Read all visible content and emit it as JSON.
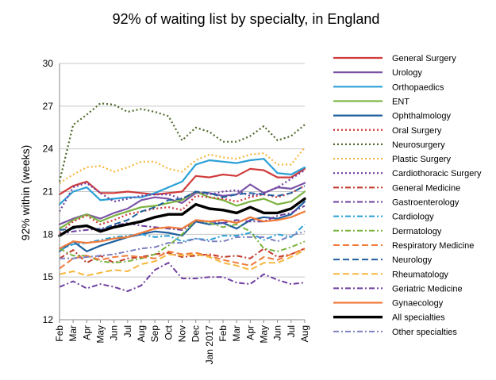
{
  "chart_data": {
    "type": "line",
    "title": "92% of waiting list by specialty, in England",
    "ylabel": "92% within (weeks)",
    "xlabel": "",
    "ylim": [
      12,
      30
    ],
    "yticks": [
      12,
      15,
      18,
      21,
      24,
      27,
      30
    ],
    "grid": "horizontal",
    "legend_position": "right",
    "x": [
      "Feb",
      "Mar",
      "Apr",
      "May",
      "Jun",
      "Jul",
      "Aug",
      "Sep",
      "Oct",
      "Nov",
      "Dec",
      "Jan 2017",
      "Feb",
      "Mar",
      "Apr",
      "May",
      "Jun",
      "Jul",
      "Aug"
    ],
    "series": [
      {
        "name": "General Surgery",
        "color": "#d03b3b",
        "dash": "solid",
        "width": 2.2,
        "values": [
          20.8,
          21.4,
          21.7,
          20.9,
          20.9,
          21.0,
          20.9,
          20.8,
          20.9,
          21.0,
          22.1,
          22.0,
          22.2,
          22.1,
          22.6,
          22.5,
          22.0,
          22.0,
          22.6
        ]
      },
      {
        "name": "Urology",
        "color": "#7b54a6",
        "dash": "solid",
        "width": 2.2,
        "values": [
          18.7,
          19.1,
          19.4,
          19.1,
          19.5,
          19.8,
          20.4,
          20.6,
          20.5,
          20.2,
          20.9,
          20.9,
          20.7,
          20.8,
          21.5,
          20.9,
          21.3,
          21.2,
          21.6
        ]
      },
      {
        "name": "Orthopaedics",
        "color": "#2a9fd6",
        "dash": "solid",
        "width": 2.2,
        "values": [
          20.1,
          21.0,
          21.3,
          20.4,
          20.5,
          20.6,
          20.6,
          20.9,
          21.3,
          21.7,
          22.9,
          23.2,
          23.1,
          23.0,
          23.2,
          23.3,
          22.3,
          22.2,
          22.7
        ]
      },
      {
        "name": "ENT",
        "color": "#7bb33f",
        "dash": "solid",
        "width": 2.2,
        "values": [
          18.4,
          19.0,
          19.4,
          18.9,
          19.3,
          19.6,
          19.9,
          20.0,
          20.2,
          20.4,
          21.0,
          20.6,
          20.4,
          20.0,
          20.3,
          20.5,
          20.1,
          20.3,
          21.0
        ]
      },
      {
        "name": "Ophthalmology",
        "color": "#1f5f9e",
        "dash": "solid",
        "width": 2.2,
        "values": [
          16.8,
          17.5,
          16.8,
          17.2,
          17.5,
          17.8,
          18.0,
          18.2,
          18.1,
          17.9,
          18.9,
          18.7,
          18.8,
          18.4,
          19.0,
          19.2,
          19.1,
          19.4,
          20.3
        ]
      },
      {
        "name": "Oral Surgery",
        "color": "#d03b3b",
        "dash": "dot",
        "width": 2.2,
        "values": [
          18.1,
          18.9,
          19.3,
          18.7,
          19.0,
          19.4,
          19.6,
          19.8,
          19.9,
          19.7,
          20.7,
          20.6,
          20.5,
          20.3,
          20.6,
          20.8,
          20.6,
          20.9,
          21.4
        ]
      },
      {
        "name": "Neurosurgery",
        "color": "#4f6b2a",
        "dash": "dot",
        "width": 2.2,
        "values": [
          21.7,
          25.7,
          26.4,
          27.2,
          27.1,
          26.6,
          26.8,
          26.6,
          26.3,
          24.6,
          25.5,
          25.2,
          24.5,
          24.5,
          24.9,
          25.6,
          24.6,
          24.9,
          25.7
        ]
      },
      {
        "name": "Plastic Surgery",
        "color": "#f5b73d",
        "dash": "dot",
        "width": 2.2,
        "values": [
          21.6,
          22.2,
          22.7,
          22.8,
          22.4,
          22.7,
          23.1,
          23.1,
          22.6,
          22.4,
          23.2,
          23.6,
          23.4,
          23.3,
          23.6,
          23.7,
          22.9,
          22.9,
          24.1
        ]
      },
      {
        "name": "Cardiothoracic Surgery",
        "color": "#6f3fa0",
        "dash": "dot",
        "width": 2.2,
        "values": [
          19.6,
          21.3,
          21.6,
          20.9,
          20.3,
          20.5,
          20.7,
          20.8,
          20.8,
          20.5,
          21.0,
          20.8,
          21.0,
          21.1,
          20.7,
          20.9,
          21.3,
          21.9,
          22.5
        ]
      },
      {
        "name": "General Medicine",
        "color": "#c0392b",
        "dash": "dashdot",
        "width": 2,
        "values": [
          16.3,
          16.9,
          16.0,
          16.5,
          16.0,
          16.3,
          16.4,
          16.6,
          16.7,
          16.4,
          16.5,
          16.6,
          16.4,
          16.5,
          16.3,
          17.0,
          16.4,
          16.6,
          17.0
        ]
      },
      {
        "name": "Gastroenterology",
        "color": "#6f3fa0",
        "dash": "dashdot",
        "width": 2,
        "values": [
          18.0,
          18.2,
          18.3,
          18.4,
          18.6,
          18.8,
          18.6,
          18.5,
          18.4,
          18.3,
          18.9,
          18.9,
          18.8,
          19.0,
          18.9,
          18.9,
          19.3,
          19.5,
          20.0
        ]
      },
      {
        "name": "Cardiology",
        "color": "#2a9fd6",
        "dash": "dashdot",
        "width": 2,
        "values": [
          16.9,
          17.3,
          17.4,
          17.6,
          17.8,
          17.9,
          18.0,
          17.8,
          17.9,
          17.5,
          17.7,
          17.6,
          17.9,
          17.9,
          18.1,
          17.6,
          18.0,
          17.8,
          18.7
        ]
      },
      {
        "name": "Dermatology",
        "color": "#7bb33f",
        "dash": "dashdot",
        "width": 2,
        "values": [
          17.0,
          16.5,
          16.5,
          16.1,
          16.0,
          16.1,
          16.3,
          16.6,
          17.2,
          18.0,
          19.0,
          18.8,
          18.5,
          18.7,
          18.2,
          17.0,
          16.8,
          17.1,
          17.5
        ]
      },
      {
        "name": "Respiratory Medicine",
        "color": "#f07a3a",
        "dash": "dash",
        "width": 2,
        "values": [
          15.6,
          16.3,
          16.5,
          16.2,
          16.4,
          16.5,
          16.4,
          16.3,
          16.8,
          16.6,
          16.7,
          16.5,
          16.2,
          16.0,
          15.8,
          16.4,
          16.2,
          16.6,
          17.0
        ]
      },
      {
        "name": "Neurology",
        "color": "#1f5f9e",
        "dash": "dash",
        "width": 2,
        "values": [
          18.3,
          18.4,
          18.6,
          18.3,
          18.7,
          19.0,
          19.6,
          19.9,
          20.4,
          20.5,
          21.0,
          20.9,
          20.6,
          20.8,
          20.9,
          20.8,
          20.7,
          20.9,
          21.4
        ]
      },
      {
        "name": "Rheumatology",
        "color": "#f5b73d",
        "dash": "dash",
        "width": 2,
        "values": [
          15.2,
          15.4,
          15.1,
          15.3,
          15.5,
          15.4,
          15.9,
          16.1,
          16.6,
          16.5,
          16.6,
          16.4,
          16.0,
          15.8,
          15.5,
          16.0,
          16.0,
          16.4,
          16.9
        ]
      },
      {
        "name": "Geriatric Medicine",
        "color": "#6f3fa0",
        "dash": "dashdot",
        "width": 2,
        "values": [
          14.3,
          14.7,
          14.2,
          14.5,
          14.3,
          14.0,
          14.4,
          15.5,
          16.0,
          14.9,
          14.9,
          15.0,
          15.0,
          14.6,
          14.5,
          15.2,
          14.8,
          14.5,
          14.6
        ]
      },
      {
        "name": "Gynaecology",
        "color": "#f07a3a",
        "dash": "solid",
        "width": 2.2,
        "values": [
          17.0,
          17.5,
          17.4,
          17.5,
          17.7,
          17.8,
          18.1,
          18.4,
          18.5,
          18.4,
          19.0,
          18.9,
          19.0,
          18.8,
          19.2,
          18.9,
          19.0,
          19.2,
          19.6
        ]
      },
      {
        "name": "All specialties",
        "color": "#000000",
        "dash": "solid",
        "width": 3.4,
        "values": [
          17.9,
          18.5,
          18.6,
          18.2,
          18.5,
          18.7,
          18.9,
          19.2,
          19.4,
          19.4,
          20.1,
          19.8,
          19.7,
          19.5,
          19.9,
          19.5,
          19.5,
          19.8,
          20.5
        ]
      },
      {
        "name": "Other specialties",
        "color": "#7f7fc0",
        "dash": "dashdot",
        "width": 2,
        "values": [
          16.3,
          16.3,
          16.4,
          16.5,
          16.6,
          16.8,
          17.0,
          17.1,
          17.4,
          17.4,
          17.7,
          17.5,
          17.5,
          17.8,
          17.8,
          17.8,
          17.5,
          17.9,
          18.2
        ]
      }
    ]
  }
}
